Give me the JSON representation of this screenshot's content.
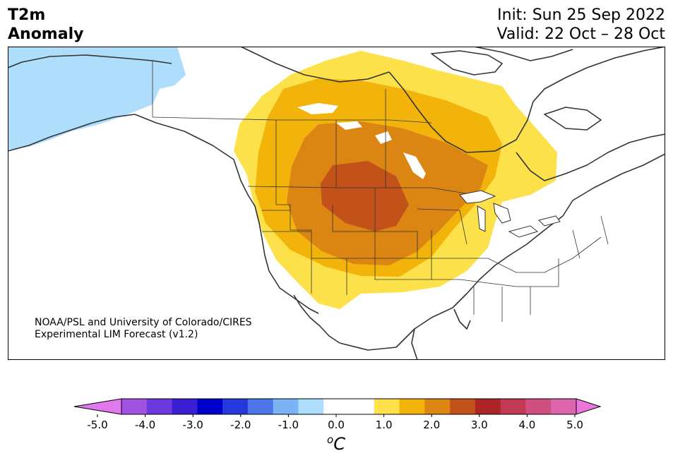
{
  "header": {
    "title_line1": "T2m",
    "title_line2": "Anomaly",
    "init": "Init: Sun 25 Sep 2022",
    "valid": "Valid: 22 Oct – 28 Oct"
  },
  "credit": {
    "line1": "NOAA/PSL and University of Colorado/CIRES",
    "line2": "Experimental LIM Forecast (v1.2)"
  },
  "colorbar": {
    "colors": [
      "#e178ee",
      "#a052e3",
      "#6a3ade",
      "#3a1fd2",
      "#0000cc",
      "#2438dc",
      "#4e76e8",
      "#7ab4f5",
      "#aedefc",
      "#ffffff",
      "#ffffff",
      "#fde14a",
      "#f2b40a",
      "#db8512",
      "#c3521a",
      "#ad2427",
      "#bf3a52",
      "#cf4f7f",
      "#dd65ae",
      "#ea78dc"
    ],
    "ticks": [
      "-5.0",
      "-4.0",
      "-3.0",
      "-2.0",
      "-1.0",
      "0.0",
      "1.0",
      "2.0",
      "3.0",
      "4.0",
      "5.0"
    ],
    "unit_sup": "o",
    "unit": "C"
  },
  "map": {
    "region": "North America",
    "land_outline_color": "#333333",
    "legend_colors": {
      "cold_1": "#aedefc",
      "warm_1": "#fde14a",
      "warm_2": "#f2b40a",
      "warm_3": "#db8512",
      "warm_4": "#c3521a"
    }
  }
}
